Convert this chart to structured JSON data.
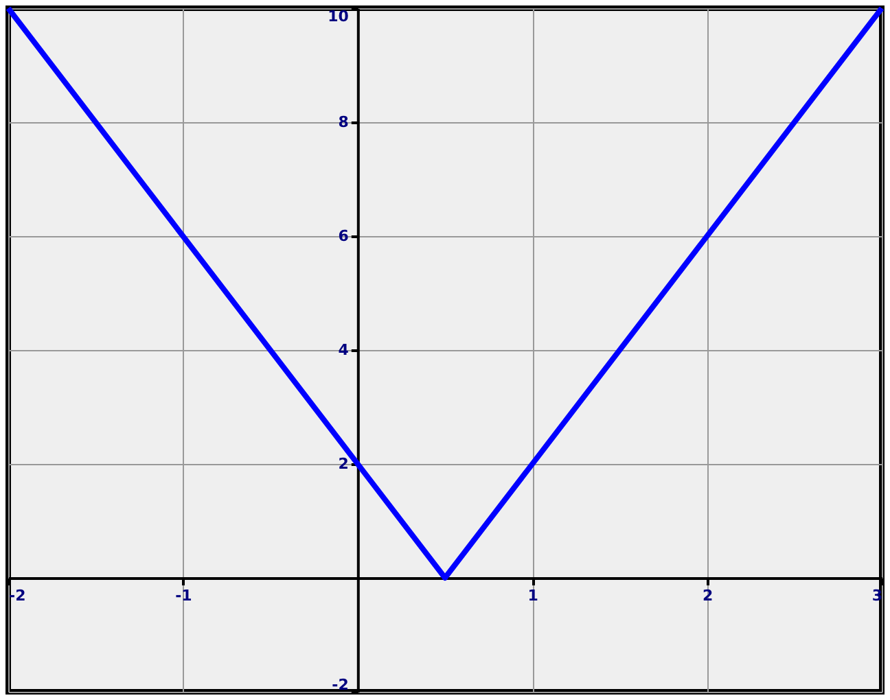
{
  "chart_data": {
    "type": "line",
    "x": [
      -2,
      0.5,
      3
    ],
    "series": [
      {
        "color": "#0000ff",
        "values": [
          10,
          0,
          10
        ]
      }
    ],
    "xlim": [
      -2,
      3
    ],
    "ylim": [
      -2,
      10
    ],
    "xticks": [
      -2,
      -1,
      1,
      2,
      3
    ],
    "yticks": [
      -2,
      2,
      4,
      6,
      8,
      10
    ],
    "grid": true,
    "marker": "none",
    "line_style": "solid"
  }
}
